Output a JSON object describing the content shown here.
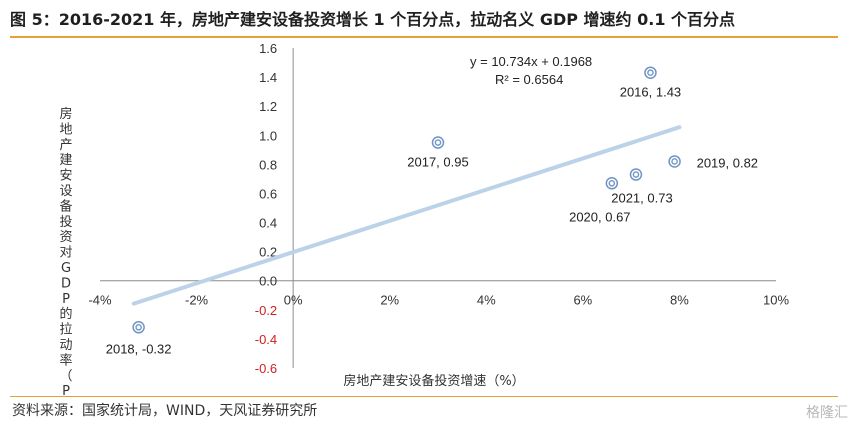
{
  "header": {
    "title": "图 5：2016-2021 年，房地产建安设备投资增长 1 个百分点，拉动名义 GDP 增速约 0.1 个百分点"
  },
  "footer": {
    "source": "资料来源：国家统计局，WIND，天风证券研究所",
    "watermark": "格隆汇"
  },
  "colors": {
    "accent_rule": "#e5a03a",
    "point": "#6f95c4",
    "trendline": "#bcd2e8",
    "negative_tick": "#d02020"
  },
  "chart_data": {
    "type": "scatter",
    "title": "",
    "xlabel": "房地产建安设备投资增速（%）",
    "ylabel": "房地产建安设备投资对GDP的拉动率（PCT）",
    "xlim": [
      -0.04,
      0.1
    ],
    "ylim": [
      -0.6,
      1.6
    ],
    "x_ticks": [
      -0.04,
      -0.02,
      0,
      0.02,
      0.04,
      0.06,
      0.08,
      0.1
    ],
    "x_tick_labels": [
      "-4%",
      "-2%",
      "0%",
      "2%",
      "4%",
      "6%",
      "8%",
      "10%"
    ],
    "y_ticks": [
      1.6,
      1.4,
      1.2,
      1.0,
      0.8,
      0.6,
      0.4,
      0.2,
      0.0,
      -0.2,
      -0.4,
      -0.6
    ],
    "y_tick_labels": [
      "1.6",
      "1.4",
      "1.2",
      "1.0",
      "0.8",
      "0.6",
      "0.4",
      "0.2",
      "0.0",
      "-0.2",
      "-0.4",
      "-0.6"
    ],
    "grid": false,
    "points": [
      {
        "year": "2016",
        "x": 0.074,
        "y": 1.43,
        "label": "2016, 1.43"
      },
      {
        "year": "2017",
        "x": 0.03,
        "y": 0.95,
        "label": "2017, 0.95"
      },
      {
        "year": "2018",
        "x": -0.032,
        "y": -0.32,
        "label": "2018, -0.32"
      },
      {
        "year": "2019",
        "x": 0.079,
        "y": 0.82,
        "label": "2019, 0.82"
      },
      {
        "year": "2020",
        "x": 0.066,
        "y": 0.67,
        "label": "2020, 0.67"
      },
      {
        "year": "2021",
        "x": 0.071,
        "y": 0.73,
        "label": "2021, 0.73"
      }
    ],
    "trendline": {
      "slope": 10.734,
      "intercept": 0.1968,
      "x_range": [
        -0.033,
        0.08
      ],
      "equation": "y = 10.734x + 0.1968",
      "r_squared": "R² = 0.6564"
    }
  }
}
